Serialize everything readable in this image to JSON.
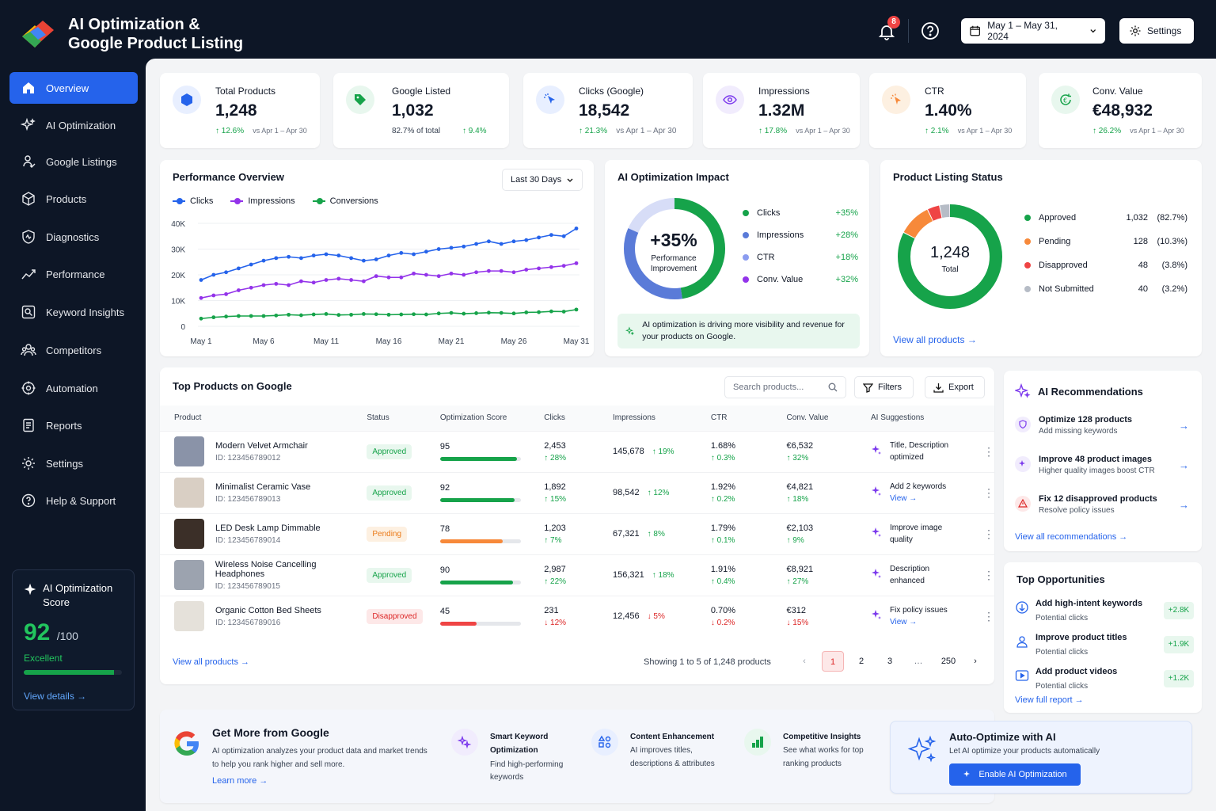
{
  "app": {
    "title_line1": "AI Optimization &",
    "title_line2": "Google Product Listing"
  },
  "header": {
    "notifications": "8",
    "date_range": "May 1 – May 31, 2024",
    "settings_label": "Settings"
  },
  "sidebar": {
    "items": [
      {
        "label": "Overview",
        "icon": "home-icon"
      },
      {
        "label": "AI Optimization",
        "icon": "sparkle-icon"
      },
      {
        "label": "Google Listings",
        "icon": "listing-icon"
      },
      {
        "label": "Products",
        "icon": "box-icon"
      },
      {
        "label": "Diagnostics",
        "icon": "diagnostics-icon"
      },
      {
        "label": "Performance",
        "icon": "trend-icon"
      },
      {
        "label": "Keyword Insights",
        "icon": "keyword-icon"
      },
      {
        "label": "Competitors",
        "icon": "competitors-icon"
      },
      {
        "label": "Automation",
        "icon": "automation-icon"
      },
      {
        "label": "Reports",
        "icon": "reports-icon"
      },
      {
        "label": "Settings",
        "icon": "gear-icon"
      },
      {
        "label": "Help & Support",
        "icon": "help-icon"
      }
    ],
    "score_card": {
      "title": "AI Optimization Score",
      "score": "92",
      "max": "/100",
      "rating": "Excellent",
      "progress": 0.92,
      "link": "View details"
    }
  },
  "kpis": [
    {
      "label": "Total Products",
      "value": "1,248",
      "change": "↑ 12.6%",
      "compare": "vs Apr 1 – Apr 30"
    },
    {
      "label": "Google Listed",
      "value": "1,032",
      "note": "82.7% of total",
      "change": "↑ 9.4%"
    },
    {
      "label": "Clicks (Google)",
      "value": "18,542",
      "change": "↑ 21.3%",
      "compare": "vs Apr 1 – Apr 30"
    },
    {
      "label": "Impressions",
      "value": "1.32M",
      "change": "↑ 17.8%",
      "compare": "vs Apr 1 – Apr 30"
    },
    {
      "label": "CTR",
      "value": "1.40%",
      "change": "↑ 2.1%",
      "compare": "vs Apr 1 – Apr 30"
    },
    {
      "label": "Conv. Value",
      "value": "€48,932",
      "change": "↑ 26.2%",
      "compare": "vs Apr 1 – Apr 30"
    }
  ],
  "performance": {
    "title": "Performance Overview",
    "period": "Last 30 Days",
    "chart_data": {
      "type": "line",
      "x": [
        "May 1",
        "May 2",
        "May 3",
        "May 4",
        "May 5",
        "May 6",
        "May 7",
        "May 8",
        "May 9",
        "May 10",
        "May 11",
        "May 12",
        "May 13",
        "May 14",
        "May 15",
        "May 16",
        "May 17",
        "May 18",
        "May 19",
        "May 20",
        "May 21",
        "May 22",
        "May 23",
        "May 24",
        "May 25",
        "May 26",
        "May 27",
        "May 28",
        "May 29",
        "May 30",
        "May 31"
      ],
      "tick_labels": [
        "May 1",
        "May 6",
        "May 11",
        "May 16",
        "May 21",
        "May 26",
        "May 31"
      ],
      "y_ticks": [
        "40K",
        "30K",
        "20K",
        "10K",
        "0"
      ],
      "ylim": [
        0,
        40000
      ],
      "series": [
        {
          "name": "Clicks",
          "color": "#2563eb",
          "values": [
            18000,
            20000,
            21000,
            22500,
            24000,
            25500,
            26500,
            27000,
            26500,
            27500,
            28000,
            27500,
            26500,
            25500,
            26000,
            27500,
            28500,
            28000,
            29000,
            30000,
            30500,
            31000,
            32000,
            33000,
            32000,
            33000,
            33500,
            34500,
            35500,
            35000,
            38000
          ]
        },
        {
          "name": "Impressions",
          "color": "#9333ea",
          "values": [
            11000,
            12000,
            12500,
            14000,
            15000,
            16000,
            16500,
            16000,
            17500,
            17000,
            18000,
            18500,
            18000,
            17500,
            19500,
            19000,
            19000,
            20500,
            20000,
            19500,
            20500,
            20000,
            21000,
            21500,
            21500,
            21000,
            22000,
            22500,
            23000,
            23500,
            24500
          ]
        },
        {
          "name": "Conversions",
          "color": "#16a34a",
          "values": [
            3000,
            3500,
            3800,
            4000,
            4000,
            4000,
            4200,
            4500,
            4300,
            4600,
            4800,
            4400,
            4500,
            4800,
            4700,
            4500,
            4600,
            4700,
            4600,
            5000,
            5200,
            4900,
            5100,
            5300,
            5200,
            5000,
            5400,
            5500,
            5800,
            5700,
            6500
          ]
        }
      ]
    }
  },
  "impact": {
    "title": "AI Optimization Impact",
    "center_value": "+35%",
    "center_label": "Performance Improvement",
    "items": [
      {
        "label": "Clicks",
        "value": "+35%",
        "color": "#16a34a"
      },
      {
        "label": "Impressions",
        "value": "+28%",
        "color": "#5a7bd8"
      },
      {
        "label": "CTR",
        "value": "+18%",
        "color": "#8b9cf0"
      },
      {
        "label": "Conv. Value",
        "value": "+32%",
        "color": "#9333ea"
      }
    ],
    "banner": "AI optimization is driving more visibility and revenue for your products on Google."
  },
  "listing_status": {
    "title": "Product Listing Status",
    "total": "1,248",
    "total_label": "Total",
    "items": [
      {
        "label": "Approved",
        "count": "1,032",
        "pct": "(82.7%)",
        "color": "#16a34a",
        "value": 1032
      },
      {
        "label": "Pending",
        "count": "128",
        "pct": "(10.3%)",
        "color": "#f7893a",
        "value": 128
      },
      {
        "label": "Disapproved",
        "count": "48",
        "pct": "(3.8%)",
        "color": "#ef4444",
        "value": 48
      },
      {
        "label": "Not Submitted",
        "count": "40",
        "pct": "(3.2%)",
        "color": "#b6bcc6",
        "value": 40
      }
    ],
    "link": "View all products"
  },
  "products": {
    "title": "Top Products on Google",
    "search_placeholder": "Search products...",
    "filters_label": "Filters",
    "export_label": "Export",
    "columns": [
      "Product",
      "Status",
      "Optimization Score",
      "Clicks",
      "Impressions",
      "CTR",
      "Conv. Value",
      "AI Suggestions"
    ],
    "rows": [
      {
        "name": "Modern Velvet Armchair",
        "id": "ID: 123456789012",
        "status": "Approved",
        "status_class": "b-approved",
        "score": "95",
        "score_value": 95,
        "score_color": "#16a34a",
        "clicks": "2,453",
        "clicks_chg": "↑ 28%",
        "clicks_dir": "up",
        "impr": "145,678",
        "impr_chg": "↑ 19%",
        "impr_dir": "up",
        "ctr": "1.68%",
        "ctr_chg": "↑ 0.3%",
        "ctr_dir": "up",
        "conv": "€6,532",
        "conv_chg": "↑ 32%",
        "conv_dir": "up",
        "sug1": "Title, Description",
        "sug2": "optimized",
        "sug_link": false,
        "thumb": "#8a93a8"
      },
      {
        "name": "Minimalist Ceramic Vase",
        "id": "ID: 123456789013",
        "status": "Approved",
        "status_class": "b-approved",
        "score": "92",
        "score_value": 92,
        "score_color": "#16a34a",
        "clicks": "1,892",
        "clicks_chg": "↑ 15%",
        "clicks_dir": "up",
        "impr": "98,542",
        "impr_chg": "↑ 12%",
        "impr_dir": "up",
        "ctr": "1.92%",
        "ctr_chg": "↑ 0.2%",
        "ctr_dir": "up",
        "conv": "€4,821",
        "conv_chg": "↑ 18%",
        "conv_dir": "up",
        "sug1": "Add 2 keywords",
        "sug2": "View",
        "sug_link": true,
        "thumb": "#d9cfc4"
      },
      {
        "name": "LED Desk Lamp Dimmable",
        "id": "ID: 123456789014",
        "status": "Pending",
        "status_class": "b-pending",
        "score": "78",
        "score_value": 78,
        "score_color": "#f7893a",
        "clicks": "1,203",
        "clicks_chg": "↑ 7%",
        "clicks_dir": "up",
        "impr": "67,321",
        "impr_chg": "↑ 8%",
        "impr_dir": "up",
        "ctr": "1.79%",
        "ctr_chg": "↑ 0.1%",
        "ctr_dir": "up",
        "conv": "€2,103",
        "conv_chg": "↑ 9%",
        "conv_dir": "up",
        "sug1": "Improve image",
        "sug2": "quality",
        "sug_link": false,
        "thumb": "#3b2f28"
      },
      {
        "name": "Wireless Noise Cancelling Headphones",
        "id": "ID: 123456789015",
        "status": "Approved",
        "status_class": "b-approved",
        "score": "90",
        "score_value": 90,
        "score_color": "#16a34a",
        "clicks": "2,987",
        "clicks_chg": "↑ 22%",
        "clicks_dir": "up",
        "impr": "156,321",
        "impr_chg": "↑ 18%",
        "impr_dir": "up",
        "ctr": "1.91%",
        "ctr_chg": "↑ 0.4%",
        "ctr_dir": "up",
        "conv": "€8,921",
        "conv_chg": "↑ 27%",
        "conv_dir": "up",
        "sug1": "Description",
        "sug2": "enhanced",
        "sug_link": false,
        "thumb": "#9ca3af"
      },
      {
        "name": "Organic Cotton Bed Sheets",
        "id": "ID: 123456789016",
        "status": "Disapproved",
        "status_class": "b-disapproved",
        "score": "45",
        "score_value": 45,
        "score_color": "#ef4444",
        "clicks": "231",
        "clicks_chg": "↓ 12%",
        "clicks_dir": "down",
        "impr": "12,456",
        "impr_chg": "↓ 5%",
        "impr_dir": "down",
        "ctr": "0.70%",
        "ctr_chg": "↓ 0.2%",
        "ctr_dir": "down",
        "conv": "€312",
        "conv_chg": "↓ 15%",
        "conv_dir": "down",
        "sug1": "Fix policy issues",
        "sug2": "View",
        "sug_link": true,
        "thumb": "#e5e1da"
      }
    ],
    "view_all": "View all products",
    "showing": "Showing 1 to 5 of 1,248 products",
    "pages": [
      "1",
      "2",
      "3",
      "…",
      "250"
    ]
  },
  "recommendations": {
    "title": "AI Recommendations",
    "items": [
      {
        "title": "Optimize 128 products",
        "sub": "Add missing keywords",
        "icon": "shield-icon",
        "color": "#7c3aed",
        "bg": "#f1ecfd"
      },
      {
        "title": "Improve 48 product images",
        "sub": "Higher quality images boost CTR",
        "icon": "sparkle-icon",
        "color": "#7c3aed",
        "bg": "#f1ecfd"
      },
      {
        "title": "Fix 12 disapproved products",
        "sub": "Resolve policy issues",
        "icon": "warning-icon",
        "color": "#dc2626",
        "bg": "#fde8e8"
      }
    ],
    "link": "View all recommendations"
  },
  "opportunities": {
    "title": "Top Opportunities",
    "items": [
      {
        "title": "Add high-intent keywords",
        "sub": "Potential clicks",
        "value": "+2.8K"
      },
      {
        "title": "Improve product titles",
        "sub": "Potential clicks",
        "value": "+1.9K"
      },
      {
        "title": "Add product videos",
        "sub": "Potential clicks",
        "value": "+1.2K"
      }
    ],
    "link": "View full report"
  },
  "google_promo": {
    "title": "Get More from Google",
    "desc1": "AI optimization analyzes your product data and market trends",
    "desc2": "to help you rank higher and sell more.",
    "link": "Learn more",
    "features": [
      {
        "title1": "Smart Keyword",
        "title2": "Optimization",
        "d1": "Find high-performing",
        "d2": "keywords"
      },
      {
        "title1": "Content Enhancement",
        "title2": "",
        "d1": "AI improves titles,",
        "d2": "descriptions & attributes"
      },
      {
        "title1": "Competitive Insights",
        "title2": "",
        "d1": "See what works for top",
        "d2": "ranking products"
      }
    ]
  },
  "auto_optimize": {
    "title": "Auto-Optimize with AI",
    "desc": "Let AI optimize your products automatically",
    "button": "Enable AI Optimization"
  }
}
